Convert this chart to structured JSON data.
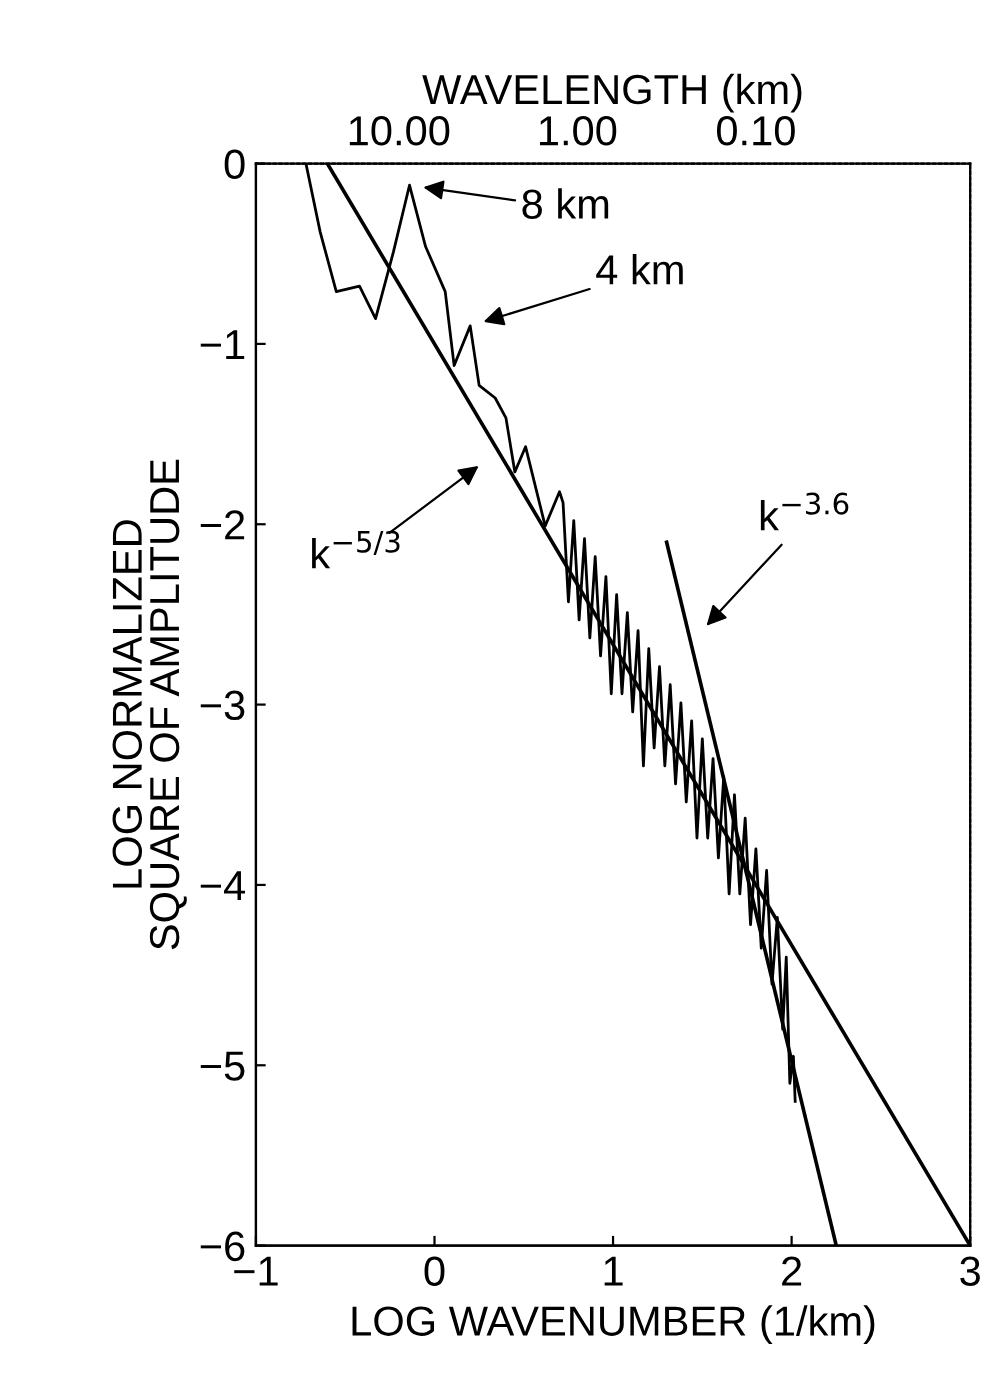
{
  "chart_data": {
    "type": "line",
    "xlabel": "LOG WAVENUMBER (1/km)",
    "ylabel": "LOG NORMALIZED\nSQUARE OF AMPLITUDE",
    "x2label": "WAVELENGTH (km)",
    "xlim": [
      -1,
      3
    ],
    "xticks": [
      {
        "value": -1,
        "label": "−1"
      },
      0,
      1,
      2,
      3
    ],
    "x2lim": [
      63.1,
      0.00631
    ],
    "log": "x2",
    "x2ticks": [
      {
        "value": 10,
        "label": "10.00"
      },
      {
        "value": 1,
        "label": "1.00"
      },
      {
        "value": 0.1,
        "label": "0.10"
      }
    ],
    "ylim": [
      -6,
      0
    ],
    "yticks": [
      {
        "value": -6,
        "label": "−6"
      },
      {
        "value": -5,
        "label": "−5"
      },
      {
        "value": -4,
        "label": "−4"
      },
      {
        "value": -3,
        "label": "−3"
      },
      {
        "value": -2,
        "label": "−2"
      },
      {
        "value": -1,
        "label": "−1"
      },
      0
    ],
    "grid": false,
    "legend": false,
    "marker": "none",
    "series": [
      {
        "color": "#000000",
        "line_style": "solid",
        "x": [
          -0.72,
          -0.64,
          -0.55,
          -0.42,
          -0.33,
          -0.23,
          -0.14,
          -0.05,
          0.06,
          0.11,
          0.2,
          0.25,
          0.34,
          0.4,
          0.45,
          0.51,
          0.62,
          0.7,
          0.72,
          0.75,
          0.78,
          0.81,
          0.84,
          0.87,
          0.9,
          0.93,
          0.96,
          0.99,
          1.02,
          1.05,
          1.08,
          1.11,
          1.14,
          1.17,
          1.2,
          1.23,
          1.26,
          1.29,
          1.32,
          1.35,
          1.38,
          1.41,
          1.44,
          1.47,
          1.5,
          1.53,
          1.56,
          1.59,
          1.62,
          1.65,
          1.68,
          1.71,
          1.74,
          1.77,
          1.8,
          1.83,
          1.86,
          1.89,
          1.92,
          1.95,
          1.97,
          1.99,
          2.01,
          2.02
        ],
        "values": [
          0.0,
          -0.38,
          -0.71,
          -0.68,
          -0.86,
          -0.49,
          -0.12,
          -0.46,
          -0.71,
          -1.12,
          -0.9,
          -1.23,
          -1.3,
          -1.41,
          -1.71,
          -1.57,
          -2.01,
          -1.82,
          -1.88,
          -2.43,
          -1.98,
          -2.53,
          -2.08,
          -2.63,
          -2.18,
          -2.73,
          -2.29,
          -2.94,
          -2.39,
          -2.94,
          -2.49,
          -3.04,
          -2.59,
          -3.34,
          -2.69,
          -3.24,
          -2.79,
          -3.34,
          -2.89,
          -3.44,
          -2.99,
          -3.54,
          -3.09,
          -3.74,
          -3.19,
          -3.74,
          -3.3,
          -3.85,
          -3.4,
          -4.05,
          -3.5,
          -4.05,
          -3.63,
          -4.22,
          -3.8,
          -4.35,
          -3.92,
          -4.55,
          -4.18,
          -4.8,
          -4.4,
          -5.1,
          -4.95,
          -5.2
        ]
      },
      {
        "color": "#000000",
        "line_style": "solid",
        "x": [
          -0.6,
          3
        ],
        "values": [
          0,
          -6
        ]
      },
      {
        "color": "#000000",
        "line_style": "solid",
        "x": [
          1.3,
          2.25
        ],
        "values": [
          -2.1,
          -6
        ]
      }
    ],
    "annotations": [
      {
        "text": "8 km",
        "x": -0.14,
        "y": -0.12
      },
      {
        "text": "4 km",
        "x": 0.2,
        "y": -0.9
      },
      {
        "text": "k$^{−5/3}$",
        "x": 0.31,
        "y": -1.63
      },
      {
        "text": "k$^{−3.6}$",
        "x": 1.47,
        "y": -2.62
      }
    ]
  }
}
